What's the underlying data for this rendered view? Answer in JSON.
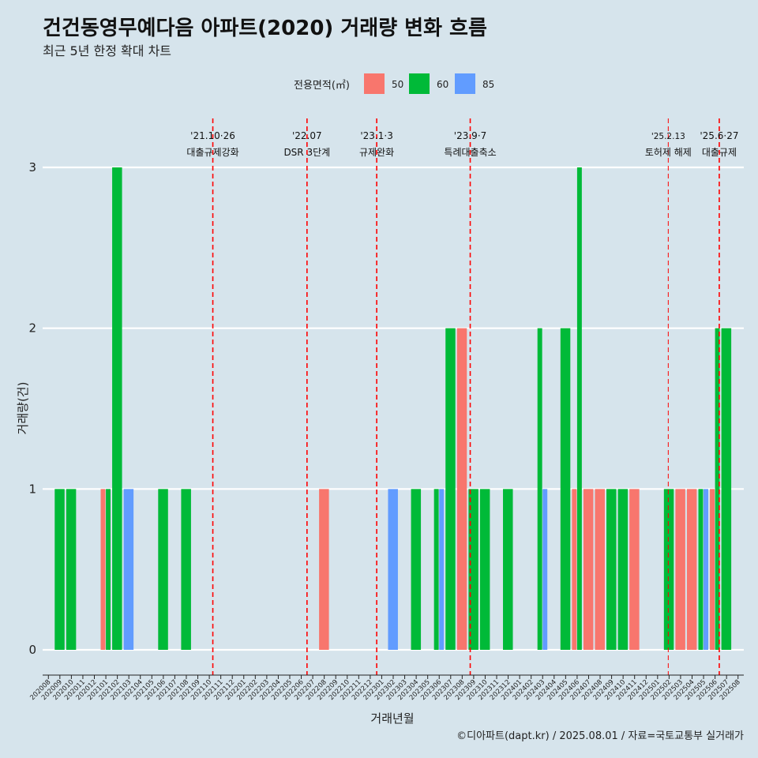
{
  "title": "건건동영무예다음 아파트(2020) 거래량 변화 흐름",
  "subtitle": "최근 5년 한정 확대 차트",
  "caption": "©디아파트(dapt.kr) / 2025.08.01 / 자료=국토교통부 실거래가",
  "colors": {
    "50": "#f8766d",
    "60": "#00ba38",
    "85": "#619cff",
    "annotation": "#ff0000",
    "background": "#d6e4ec",
    "grid": "#ffffff"
  },
  "chart_data": {
    "type": "bar",
    "stacking": "dodge",
    "xlabel": "거래년월",
    "ylabel": "거래량(건)",
    "ylim": [
      0,
      3
    ],
    "yticks": [
      0,
      1,
      2,
      3
    ],
    "grid": true,
    "legend": {
      "title": "전용면적(㎡)",
      "position": "top",
      "entries": [
        "50",
        "60",
        "85"
      ]
    },
    "categories": [
      "202008",
      "202009",
      "202010",
      "202011",
      "202012",
      "202101",
      "202102",
      "202103",
      "202104",
      "202105",
      "202106",
      "202107",
      "202108",
      "202109",
      "202110",
      "202111",
      "202112",
      "202201",
      "202202",
      "202203",
      "202204",
      "202205",
      "202206",
      "202207",
      "202208",
      "202209",
      "202210",
      "202211",
      "202212",
      "202301",
      "202302",
      "202303",
      "202304",
      "202305",
      "202306",
      "202307",
      "202308",
      "202309",
      "202310",
      "202311",
      "202312",
      "202401",
      "202402",
      "202403",
      "202404",
      "202405",
      "202406",
      "202407",
      "202408",
      "202409",
      "202410",
      "202411",
      "202412",
      "202501",
      "202502",
      "202503",
      "202504",
      "202505",
      "202506",
      "202507",
      "202508"
    ],
    "series": [
      {
        "name": "50",
        "points": [
          {
            "x": "202101",
            "y": 1
          },
          {
            "x": "202208",
            "y": 1
          },
          {
            "x": "202308",
            "y": 2
          },
          {
            "x": "202406",
            "y": 1
          },
          {
            "x": "202407",
            "y": 1
          },
          {
            "x": "202408",
            "y": 1
          },
          {
            "x": "202411",
            "y": 1
          },
          {
            "x": "202503",
            "y": 1
          },
          {
            "x": "202504",
            "y": 1
          },
          {
            "x": "202506",
            "y": 1
          }
        ]
      },
      {
        "name": "60",
        "points": [
          {
            "x": "202009",
            "y": 1
          },
          {
            "x": "202010",
            "y": 1
          },
          {
            "x": "202101",
            "y": 1
          },
          {
            "x": "202102",
            "y": 3
          },
          {
            "x": "202106",
            "y": 1
          },
          {
            "x": "202108",
            "y": 1
          },
          {
            "x": "202304",
            "y": 1
          },
          {
            "x": "202306",
            "y": 1
          },
          {
            "x": "202307",
            "y": 2
          },
          {
            "x": "202309",
            "y": 1
          },
          {
            "x": "202310",
            "y": 1
          },
          {
            "x": "202312",
            "y": 1
          },
          {
            "x": "202403",
            "y": 2
          },
          {
            "x": "202405",
            "y": 2
          },
          {
            "x": "202406",
            "y": 3
          },
          {
            "x": "202409",
            "y": 1
          },
          {
            "x": "202410",
            "y": 1
          },
          {
            "x": "202502",
            "y": 1
          },
          {
            "x": "202505",
            "y": 1
          },
          {
            "x": "202506",
            "y": 2
          },
          {
            "x": "202507",
            "y": 2
          }
        ]
      },
      {
        "name": "85",
        "points": [
          {
            "x": "202103",
            "y": 1
          },
          {
            "x": "202302",
            "y": 1
          },
          {
            "x": "202306",
            "y": 1
          },
          {
            "x": "202403",
            "y": 1
          },
          {
            "x": "202505",
            "y": 1
          }
        ]
      }
    ],
    "annotations": [
      {
        "date": "2021-10-26",
        "line1": "'21.10·26",
        "line2": "대출규제강화"
      },
      {
        "date": "2022-07-01",
        "line1": "'22.07",
        "line2": "DSR 3단계"
      },
      {
        "date": "2023-01-03",
        "line1": "'23.1·3",
        "line2": "규제완화"
      },
      {
        "date": "2023-09-07",
        "line1": "'23.9·7",
        "line2": "특례대출축소"
      },
      {
        "date": "2025-02-13",
        "line1": "'25.2.13",
        "line2": "토허제 해제"
      },
      {
        "date": "2025-06-27",
        "line1": "'25.6·27",
        "line2": "대출규제"
      }
    ]
  }
}
